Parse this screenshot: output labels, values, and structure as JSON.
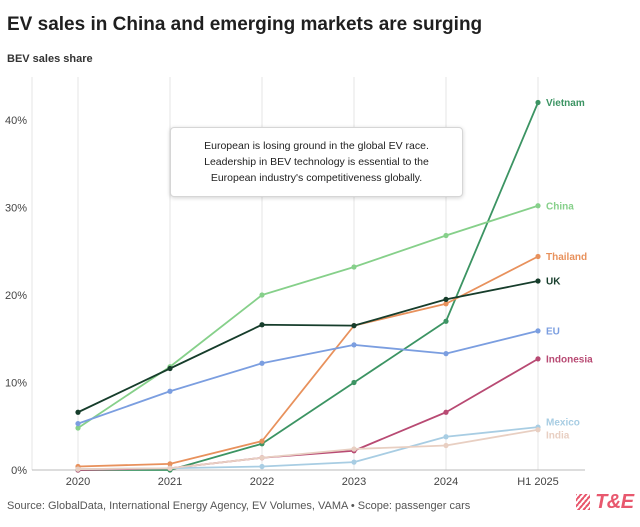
{
  "header": {
    "title": "EV sales in China and emerging markets are surging",
    "subtitle": "BEV sales share"
  },
  "annotation": {
    "text": "European is losing ground in the global EV race. Leadership in BEV technology is essential to the European industry's competitiveness globally."
  },
  "footer": {
    "source": "Source: GlobalData, International Energy Agency, EV Volumes, VAMA • Scope: passenger cars"
  },
  "logo": {
    "brand_text": "T&E",
    "color": "#e8586e"
  },
  "chart_data": {
    "type": "line",
    "title": "EV sales in China and emerging markets are surging",
    "ylabel": "BEV sales share",
    "xlabel": "",
    "categories": [
      "2020",
      "2021",
      "2022",
      "2023",
      "2024",
      "H1 2025"
    ],
    "ylim": [
      0,
      45
    ],
    "yticks": [
      0,
      10,
      20,
      30,
      40
    ],
    "ytick_labels": [
      "0%",
      "10%",
      "20%",
      "30%",
      "40%"
    ],
    "grid": "vertical",
    "series": [
      {
        "name": "Vietnam",
        "color": "#3c9463",
        "values": [
          0.0,
          0.0,
          3.0,
          10.0,
          17.0,
          42.0
        ]
      },
      {
        "name": "China",
        "color": "#86d08a",
        "values": [
          4.8,
          11.8,
          20.0,
          23.2,
          26.8,
          30.2
        ]
      },
      {
        "name": "Thailand",
        "color": "#e8915c",
        "values": [
          0.4,
          0.7,
          3.3,
          16.5,
          19.0,
          24.4
        ]
      },
      {
        "name": "UK",
        "color": "#163d2b",
        "values": [
          6.6,
          11.6,
          16.6,
          16.5,
          19.5,
          21.6
        ]
      },
      {
        "name": "EU",
        "color": "#7b9ee0",
        "values": [
          5.3,
          9.0,
          12.2,
          14.3,
          13.3,
          15.9
        ]
      },
      {
        "name": "Indonesia",
        "color": "#b84a73",
        "values": [
          0.0,
          0.2,
          1.4,
          2.2,
          6.6,
          12.7
        ]
      },
      {
        "name": "Mexico",
        "color": "#a8cde3",
        "values": [
          0.1,
          0.2,
          0.4,
          0.9,
          3.8,
          4.9
        ]
      },
      {
        "name": "India",
        "color": "#e8cfc2",
        "values": [
          0.1,
          0.2,
          1.4,
          2.4,
          2.8,
          4.6
        ]
      }
    ]
  }
}
